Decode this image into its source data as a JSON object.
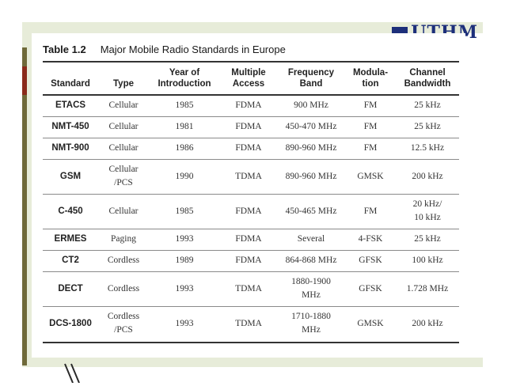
{
  "slide": {
    "logo_text": "UTHM",
    "table_number": "Table 1.2",
    "table_title": "Major Mobile Radio Standards in Europe"
  },
  "table": {
    "headers": [
      "Standard",
      "Type",
      "Year of Introduction",
      "Multiple Access",
      "Frequency Band",
      "Modula-tion",
      "Channel Bandwidth"
    ],
    "header_lines": [
      [
        "",
        "Standard"
      ],
      [
        "",
        "Type"
      ],
      [
        "Year of",
        "Introduction"
      ],
      [
        "Multiple",
        "Access"
      ],
      [
        "Frequency",
        "Band"
      ],
      [
        "Modula-",
        "tion"
      ],
      [
        "Channel",
        "Bandwidth"
      ]
    ],
    "rows": [
      [
        "ETACS",
        "Cellular",
        "1985",
        "FDMA",
        "900 MHz",
        "FM",
        "25 kHz"
      ],
      [
        "NMT-450",
        "Cellular",
        "1981",
        "FDMA",
        "450-470 MHz",
        "FM",
        "25 kHz"
      ],
      [
        "NMT-900",
        "Cellular",
        "1986",
        "FDMA",
        "890-960 MHz",
        "FM",
        "12.5 kHz"
      ],
      [
        "GSM",
        "Cellular\n/PCS",
        "1990",
        "TDMA",
        "890-960 MHz",
        "GMSK",
        "200 kHz"
      ],
      [
        "C-450",
        "Cellular",
        "1985",
        "FDMA",
        "450-465 MHz",
        "FM",
        "20 kHz/\n10 kHz"
      ],
      [
        "ERMES",
        "Paging",
        "1993",
        "FDMA",
        "Several",
        "4-FSK",
        "25 kHz"
      ],
      [
        "CT2",
        "Cordless",
        "1989",
        "FDMA",
        "864-868 MHz",
        "GFSK",
        "100 kHz"
      ],
      [
        "DECT",
        "Cordless",
        "1993",
        "TDMA",
        "1880-1900\nMHz",
        "GFSK",
        "1.728 MHz"
      ],
      [
        "DCS-1800",
        "Cordless\n/PCS",
        "1993",
        "TDMA",
        "1710-1880\nMHz",
        "GMSK",
        "200 kHz"
      ]
    ]
  }
}
